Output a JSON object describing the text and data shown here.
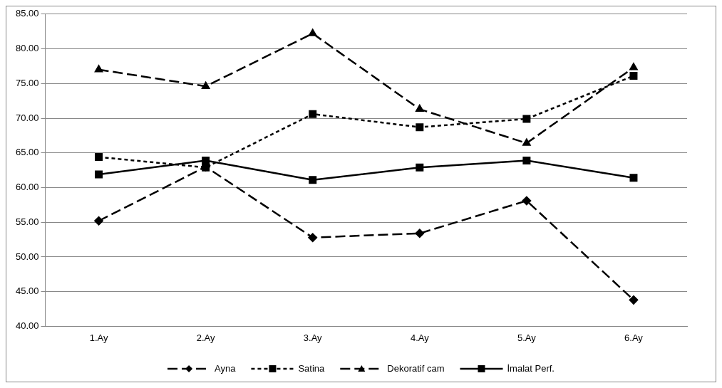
{
  "chart_data": {
    "type": "line",
    "categories": [
      "1.Ay",
      "2.Ay",
      "3.Ay",
      "4.Ay",
      "5.Ay",
      "6.Ay"
    ],
    "series": [
      {
        "name": "Ayna",
        "color": "#000000",
        "line_style": "dashed",
        "marker": "diamond",
        "values": [
          55.2,
          63.0,
          52.8,
          53.4,
          58.1,
          43.8
        ]
      },
      {
        "name": "Satina",
        "color": "#000000",
        "line_style": "dotted",
        "marker": "square",
        "values": [
          64.4,
          62.9,
          70.6,
          68.7,
          69.9,
          76.1
        ]
      },
      {
        "name": "Dekoratif cam",
        "color": "#000000",
        "line_style": "dashed",
        "marker": "triangle",
        "values": [
          77.0,
          74.6,
          82.2,
          71.3,
          66.4,
          77.3
        ]
      },
      {
        "name": "İmalat Perf.",
        "color": "#000000",
        "line_style": "solid",
        "marker": "square",
        "values": [
          61.9,
          63.9,
          61.1,
          62.9,
          63.9,
          61.4
        ]
      }
    ],
    "ylim": [
      40,
      85
    ],
    "yticks": [
      {
        "value": 40,
        "label": "40.00"
      },
      {
        "value": 45,
        "label": "45.00"
      },
      {
        "value": 50,
        "label": "50.00"
      },
      {
        "value": 55,
        "label": "55.00"
      },
      {
        "value": 60,
        "label": "60.00"
      },
      {
        "value": 65,
        "label": "65.00"
      },
      {
        "value": 70,
        "label": "70.00"
      },
      {
        "value": 75,
        "label": "75.00"
      },
      {
        "value": 80,
        "label": "80.00"
      },
      {
        "value": 85,
        "label": "85.00"
      }
    ],
    "grid": "y",
    "legend": "bottom"
  }
}
